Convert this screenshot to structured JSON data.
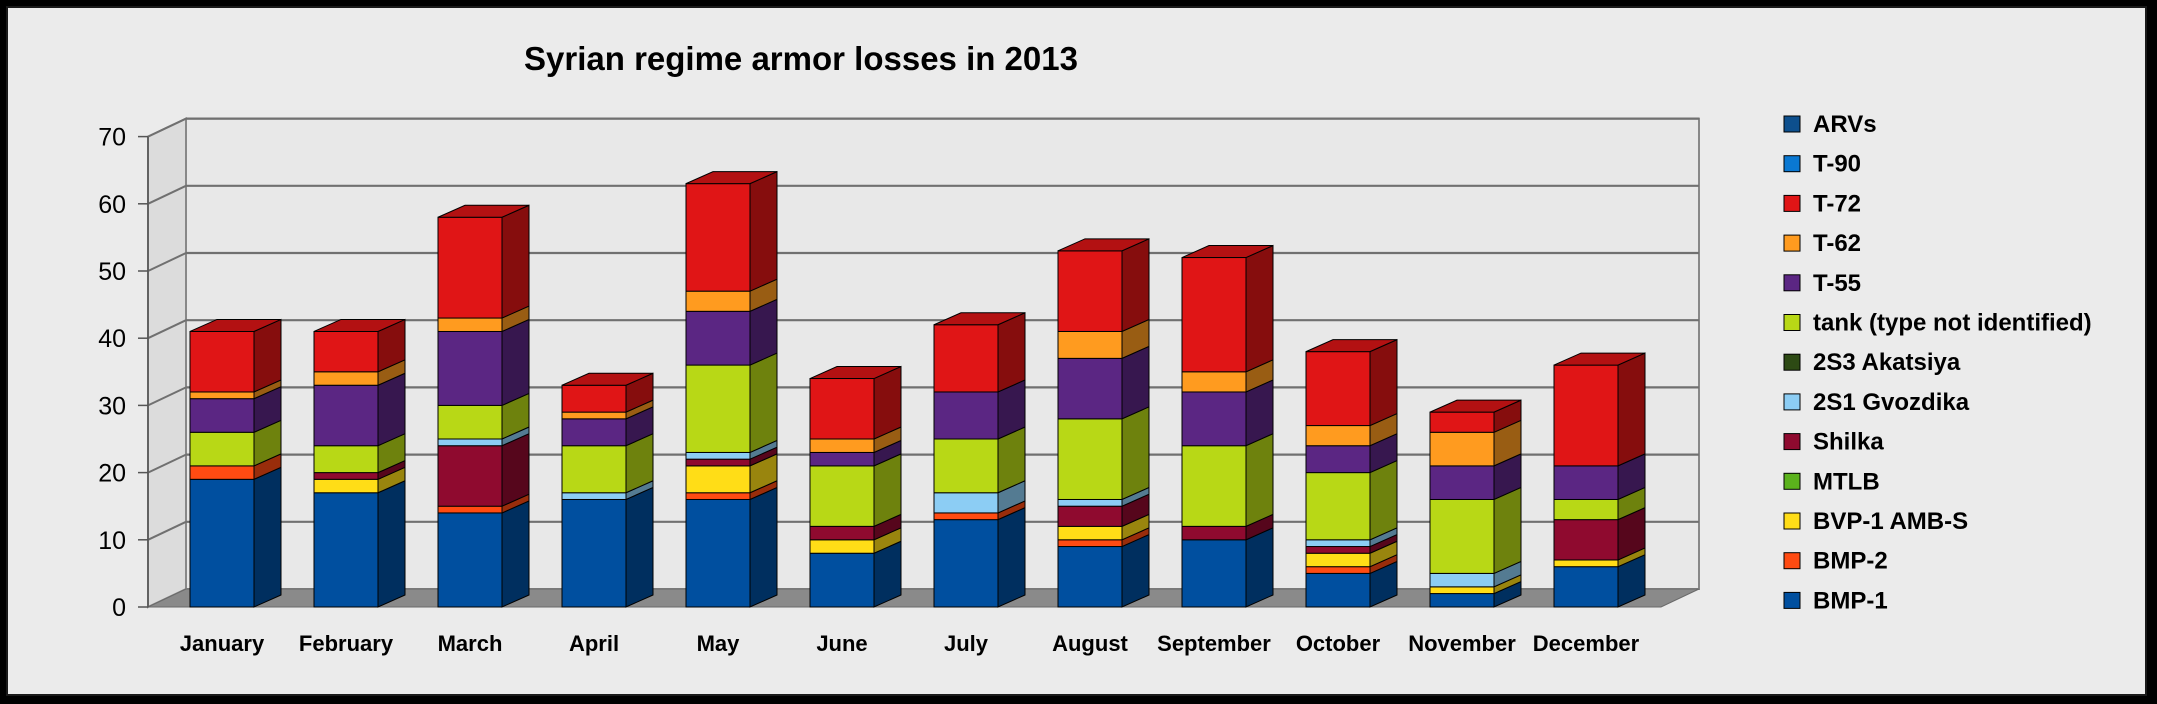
{
  "chart_data": {
    "type": "bar",
    "stacked": true,
    "three_d": true,
    "title": "Syrian regime armor losses in 2013",
    "xlabel": "",
    "ylabel": "",
    "ylim": [
      0,
      70
    ],
    "yticks": [
      0,
      10,
      20,
      30,
      40,
      50,
      60,
      70
    ],
    "grid": true,
    "legend_position": "right",
    "categories": [
      "January",
      "February",
      "March",
      "April",
      "May",
      "June",
      "July",
      "August",
      "September",
      "October",
      "November",
      "December"
    ],
    "series": [
      {
        "name": "BMP-1",
        "color": "#004f9f",
        "values": [
          19,
          17,
          14,
          16,
          16,
          8,
          13,
          9,
          10,
          5,
          2,
          6
        ]
      },
      {
        "name": "BMP-2",
        "color": "#ff4b12",
        "values": [
          2,
          0,
          1,
          0,
          1,
          0,
          1,
          1,
          0,
          1,
          0,
          0
        ]
      },
      {
        "name": "BVP-1 AMB-S",
        "color": "#ffdd17",
        "values": [
          0,
          2,
          0,
          0,
          4,
          2,
          0,
          2,
          0,
          2,
          1,
          1
        ]
      },
      {
        "name": "MTLB",
        "color": "#5bb21c",
        "values": [
          0,
          0,
          0,
          0,
          0,
          0,
          0,
          0,
          0,
          0,
          0,
          0
        ]
      },
      {
        "name": "Shilka",
        "color": "#8f0a2f",
        "values": [
          0,
          1,
          9,
          0,
          1,
          2,
          0,
          3,
          2,
          1,
          0,
          6
        ]
      },
      {
        "name": "2S1 Gvozdika",
        "color": "#8ccdf4",
        "values": [
          0,
          0,
          1,
          1,
          1,
          0,
          3,
          1,
          0,
          1,
          2,
          0
        ]
      },
      {
        "name": "2S3 Akatsiya",
        "color": "#2d4a14",
        "values": [
          0,
          0,
          0,
          0,
          0,
          0,
          0,
          0,
          0,
          0,
          0,
          0
        ]
      },
      {
        "name": "tank (type not identified)",
        "color": "#b8d816",
        "values": [
          5,
          4,
          5,
          7,
          13,
          9,
          8,
          12,
          12,
          10,
          11,
          3
        ]
      },
      {
        "name": "T-55",
        "color": "#5b2683",
        "values": [
          5,
          9,
          11,
          4,
          8,
          2,
          7,
          9,
          8,
          4,
          5,
          5
        ]
      },
      {
        "name": "T-62",
        "color": "#ff9b1f",
        "values": [
          1,
          2,
          2,
          1,
          3,
          2,
          0,
          4,
          3,
          3,
          5,
          0
        ]
      },
      {
        "name": "T-72",
        "color": "#e01516",
        "values": [
          9,
          6,
          15,
          4,
          16,
          9,
          10,
          12,
          17,
          11,
          3,
          15
        ]
      },
      {
        "name": "T-90",
        "color": "#0a78d2",
        "values": [
          0,
          0,
          0,
          0,
          0,
          0,
          0,
          0,
          0,
          0,
          0,
          0
        ]
      },
      {
        "name": "ARVs",
        "color": "#0d4f8d",
        "values": [
          0,
          0,
          0,
          0,
          0,
          0,
          0,
          0,
          0,
          0,
          0,
          0
        ]
      }
    ]
  }
}
